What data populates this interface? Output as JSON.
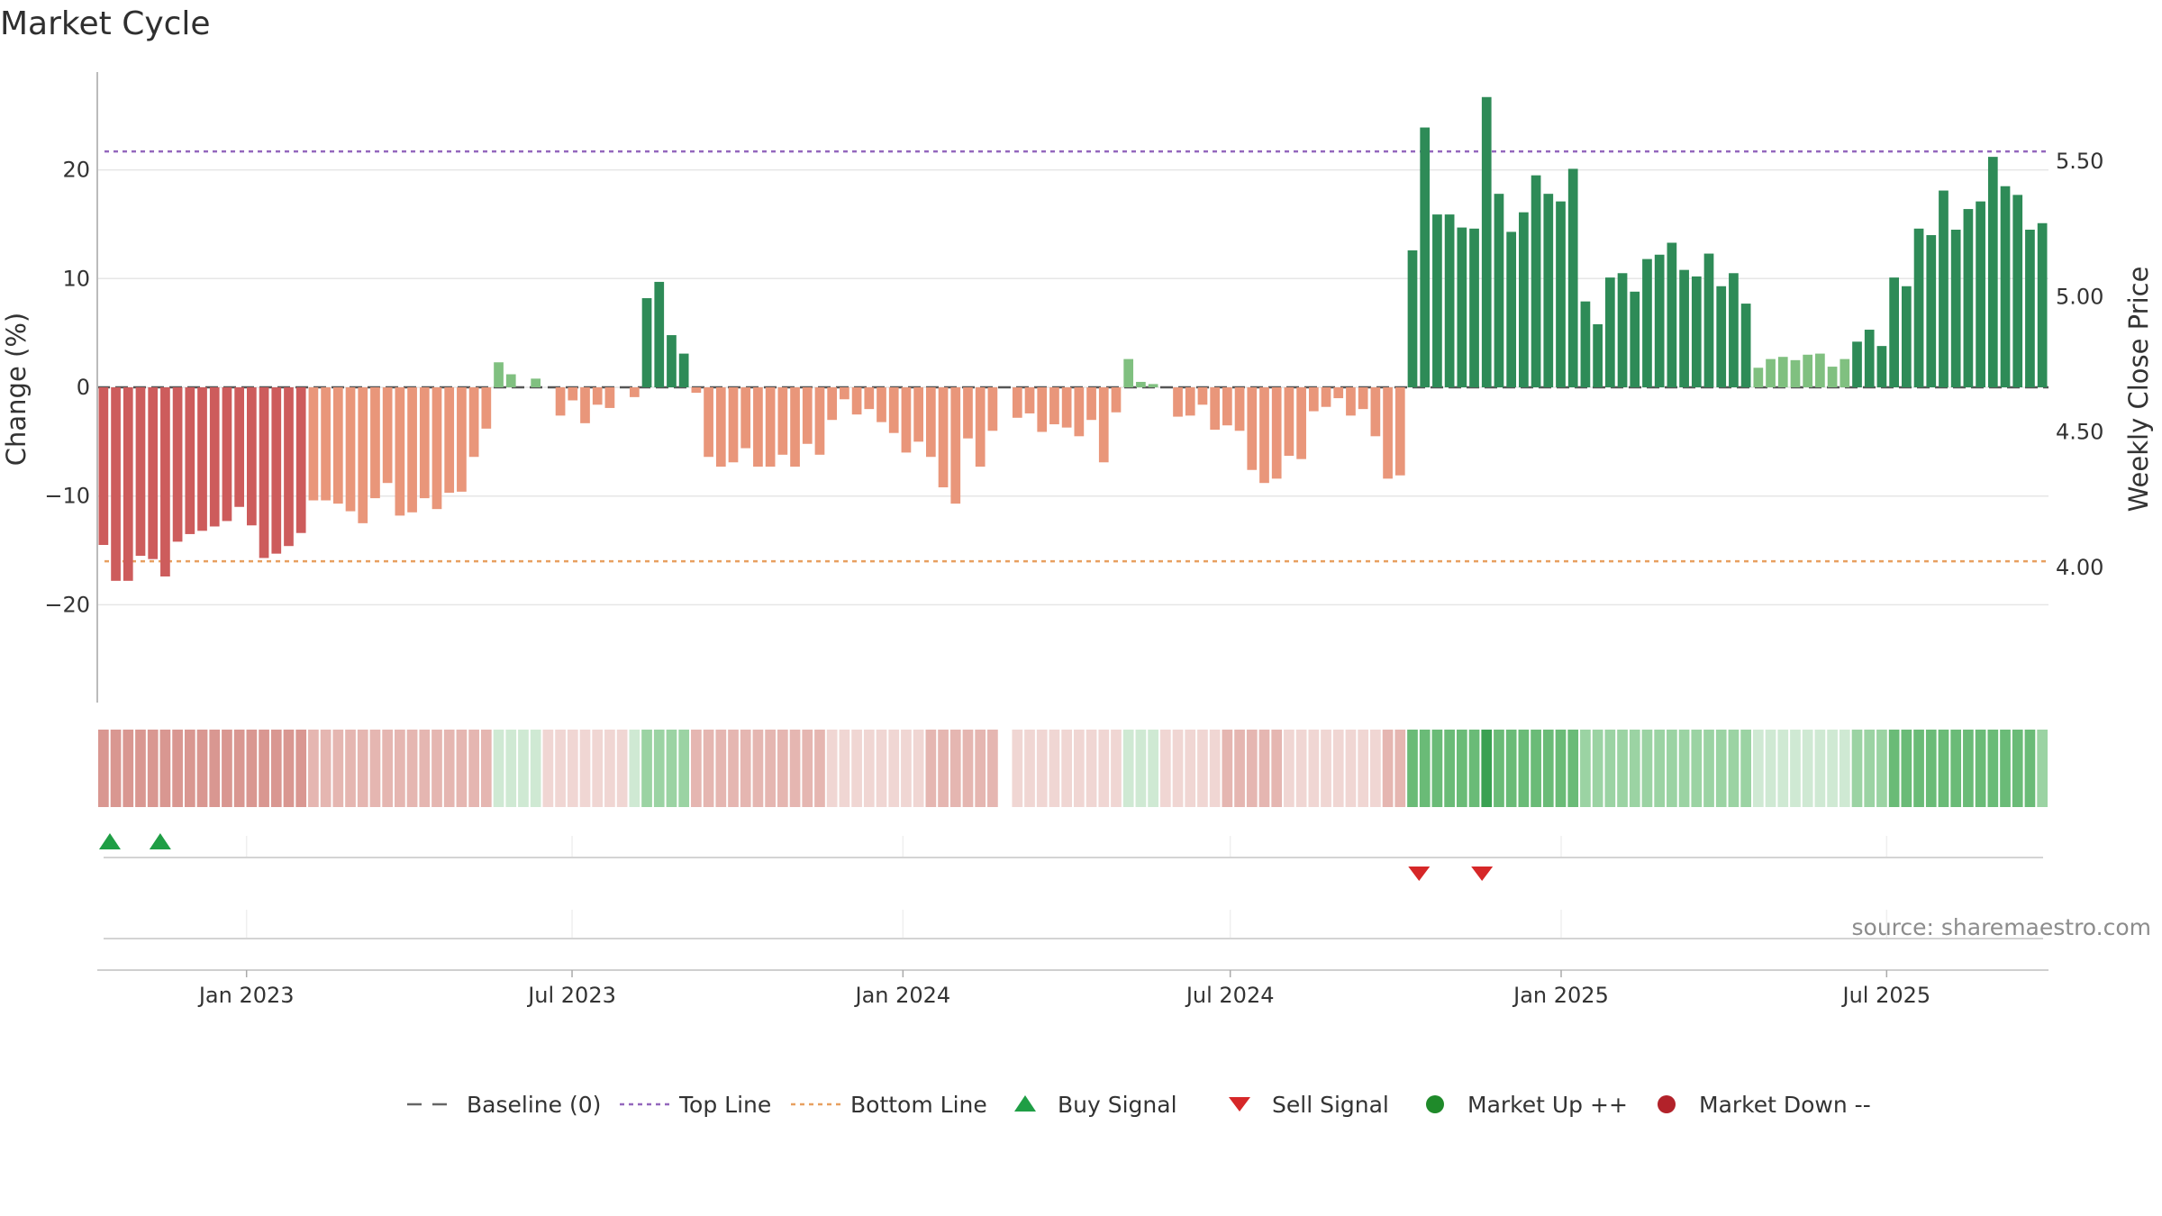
{
  "title": "Market Cycle",
  "source": "source: sharemaestro.com",
  "chart_data": {
    "type": "bar",
    "title": "Market Cycle",
    "ylabel": "Change (%)",
    "y2label": "Weekly Close Price",
    "ylim": [
      -29,
      29
    ],
    "yticks": [
      -20,
      -10,
      0,
      10,
      20
    ],
    "y2lim": [
      3.5,
      5.83
    ],
    "y2ticks": [
      "4.00",
      "4.50",
      "5.00",
      "5.50"
    ],
    "y2tick_values": [
      4.0,
      4.5,
      5.0,
      5.5
    ],
    "x_start": "2022-10-10",
    "x_end": "2025-09-29",
    "xticks": [
      {
        "date": "2023-01-01",
        "label": "Jan 2023"
      },
      {
        "date": "2023-07-01",
        "label": "Jul 2023"
      },
      {
        "date": "2024-01-01",
        "label": "Jan 2024"
      },
      {
        "date": "2024-07-01",
        "label": "Jul 2024"
      },
      {
        "date": "2025-01-01",
        "label": "Jan 2025"
      },
      {
        "date": "2025-07-01",
        "label": "Jul 2025"
      }
    ],
    "top_line": 21.7,
    "bottom_line": -16.0,
    "baseline": 0,
    "grid": true,
    "legend_position": "bottom",
    "series": [
      {
        "name": "Change (%)",
        "values": [
          -14.5,
          -17.8,
          -17.8,
          -15.5,
          -15.8,
          -17.4,
          -14.2,
          -13.5,
          -13.2,
          -12.8,
          -12.3,
          -11.0,
          -12.7,
          -15.7,
          -15.3,
          -14.6,
          -13.4,
          -10.4,
          -10.4,
          -10.7,
          -11.4,
          -12.5,
          -10.2,
          -8.8,
          -11.8,
          -11.5,
          -10.2,
          -11.2,
          -9.7,
          -9.6,
          -6.4,
          -3.8,
          2.3,
          1.2,
          0.0,
          0.8,
          0.0,
          -2.6,
          -1.2,
          -3.3,
          -1.6,
          -1.9,
          0.0,
          -0.9,
          8.2,
          9.7,
          4.8,
          3.1,
          -0.5,
          -6.4,
          -7.3,
          -6.9,
          -5.6,
          -7.3,
          -7.3,
          -6.2,
          -7.3,
          -5.2,
          -6.2,
          -3.0,
          -1.1,
          -2.5,
          -2.0,
          -3.2,
          -4.2,
          -6.0,
          -5.0,
          -6.4,
          -9.2,
          -10.7,
          -4.7,
          -7.3,
          -4.0,
          null,
          -2.8,
          -2.4,
          -4.1,
          -3.4,
          -3.7,
          -4.5,
          -3.0,
          -6.9,
          -2.3,
          2.6,
          0.5,
          0.3,
          0.0,
          -2.7,
          -2.6,
          -1.6,
          -3.9,
          -3.5,
          -4.0,
          -7.6,
          -8.8,
          -8.4,
          -6.3,
          -6.6,
          -2.2,
          -1.8,
          -1.0,
          -2.6,
          -2.0,
          -4.5,
          -8.4,
          -8.1,
          12.6,
          23.9,
          15.9,
          15.9,
          14.7,
          14.6,
          26.7,
          17.8,
          14.3,
          16.1,
          19.5,
          17.8,
          17.1,
          20.1,
          7.9,
          5.8,
          10.1,
          10.5,
          8.8,
          11.8,
          12.2,
          13.3,
          10.8,
          10.2,
          12.3,
          9.3,
          10.5,
          7.7,
          1.8,
          2.6,
          2.8,
          2.5,
          3.0,
          3.1,
          1.9,
          2.6,
          4.2,
          5.3,
          3.8,
          10.1,
          9.3,
          14.6,
          14.0,
          18.1,
          14.5,
          16.4,
          17.1,
          21.2,
          18.5,
          17.7,
          14.5,
          15.1
        ]
      }
    ],
    "state_strip": {
      "description": "weekly market state shading strip",
      "values": [
        -3,
        -3,
        -3,
        -3,
        -3,
        -3,
        -3,
        -3,
        -3,
        -3,
        -3,
        -3,
        -3,
        -3,
        -3,
        -3,
        -3,
        -2,
        -2,
        -2,
        -2,
        -2,
        -2,
        -2,
        -2,
        -2,
        -2,
        -2,
        -2,
        -2,
        -2,
        -2,
        1,
        1,
        1,
        1,
        -1,
        -1,
        -1,
        -1,
        -1,
        -1,
        -1,
        1,
        2,
        2,
        2,
        2,
        -2,
        -2,
        -2,
        -2,
        -2,
        -2,
        -2,
        -2,
        -2,
        -2,
        -2,
        -1,
        -1,
        -1,
        -1,
        -1,
        -1,
        -1,
        -1,
        -2,
        -2,
        -2,
        -2,
        -2,
        -2,
        null,
        -1,
        -1,
        -1,
        -1,
        -1,
        -1,
        -1,
        -1,
        -1,
        1,
        1,
        1,
        -1,
        -1,
        -1,
        -1,
        -1,
        -2,
        -2,
        -2,
        -2,
        -2,
        -1,
        -1,
        -1,
        -1,
        -1,
        -1,
        -1,
        -1,
        -2,
        -2,
        3,
        3,
        3,
        3,
        3,
        3,
        4,
        3,
        3,
        3,
        3,
        3,
        3,
        3,
        2,
        2,
        2,
        2,
        2,
        2,
        2,
        2,
        2,
        2,
        2,
        2,
        2,
        2,
        1,
        1,
        1,
        1,
        1,
        1,
        1,
        1,
        2,
        2,
        2,
        3,
        3,
        3,
        3,
        3,
        3,
        3,
        3,
        3,
        3,
        3,
        3,
        2
      ]
    },
    "buy_signals": [
      "2022-10-17",
      "2022-11-14"
    ],
    "sell_signals": [
      "2024-10-14",
      "2024-11-18"
    ]
  },
  "legend": [
    {
      "key": "baseline",
      "label": "Baseline (0)",
      "color": "#666666"
    },
    {
      "key": "top",
      "label": "Top Line",
      "color": "#9467bd"
    },
    {
      "key": "bottom",
      "label": "Bottom Line",
      "color": "#e8a060"
    },
    {
      "key": "buy",
      "label": "Buy Signal",
      "color": "#1f9e45"
    },
    {
      "key": "sell",
      "label": "Sell Signal",
      "color": "#d62728"
    },
    {
      "key": "up",
      "label": "Market Up ++",
      "color": "#1f8a2a"
    },
    {
      "key": "down",
      "label": "Market Down --",
      "color": "#b2222a"
    }
  ],
  "colors": {
    "bar_pos_dark": "#2e8b57",
    "bar_pos_light": "#80c080",
    "bar_neg_dark": "#cd5c5c",
    "bar_neg_light": "#e9967a",
    "grid": "#e6e6e6",
    "axis": "#bbbbbb"
  }
}
